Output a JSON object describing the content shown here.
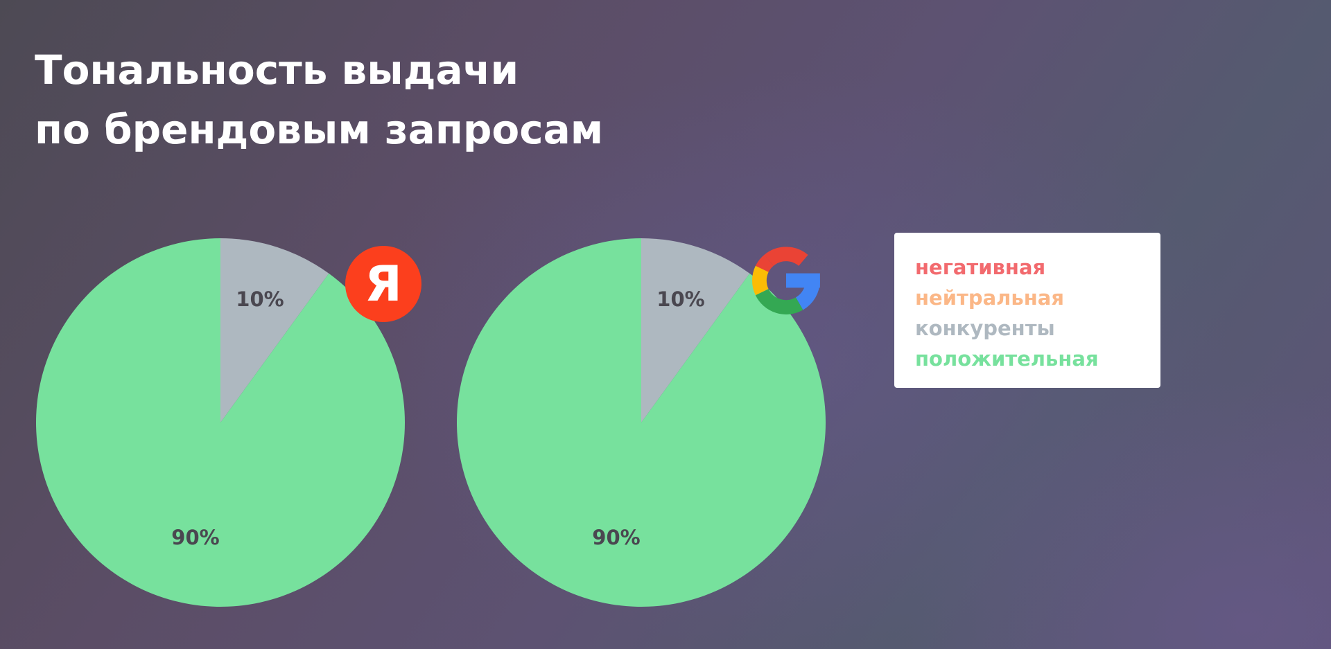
{
  "title": {
    "line1": "Тональность выдачи",
    "line2": "по брендовым запросам"
  },
  "colors": {
    "negative": "#f26a6e",
    "neutral": "#fbb787",
    "competitors": "#aeb8c0",
    "positive": "#77e19d"
  },
  "legend": {
    "items": [
      {
        "label": "негативная",
        "color": "#f26a6e"
      },
      {
        "label": "нейтральная",
        "color": "#fbb787"
      },
      {
        "label": "конкуренты",
        "color": "#aeb8c0"
      },
      {
        "label": "положительная",
        "color": "#77e19d"
      }
    ]
  },
  "logos": {
    "yandex": {
      "icon": "yandex-logo-icon",
      "letter": "Я",
      "color": "#fc3f1d"
    },
    "google": {
      "icon": "google-logo-icon"
    }
  },
  "chart_data": [
    {
      "type": "pie",
      "title": "",
      "logo": "yandex-logo-icon",
      "categories": [
        "конкуренты",
        "положительная"
      ],
      "values": [
        10,
        90
      ],
      "labels": [
        "10%",
        "90%"
      ],
      "colors": [
        "#aeb8c0",
        "#77e19d"
      ]
    },
    {
      "type": "pie",
      "title": "",
      "logo": "google-logo-icon",
      "categories": [
        "конкуренты",
        "положительная"
      ],
      "values": [
        10,
        90
      ],
      "labels": [
        "10%",
        "90%"
      ],
      "colors": [
        "#aeb8c0",
        "#77e19d"
      ]
    }
  ]
}
